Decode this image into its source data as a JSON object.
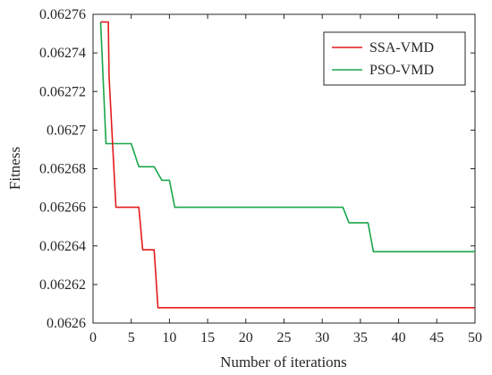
{
  "chart_data": {
    "type": "line",
    "title": "",
    "xlabel": "Number of iterations",
    "ylabel": "Fitness",
    "xlim": [
      0,
      50
    ],
    "ylim": [
      0.0626,
      0.06276
    ],
    "x_ticks": [
      0,
      5,
      10,
      15,
      20,
      25,
      30,
      35,
      40,
      45,
      50
    ],
    "y_ticks": [
      0.0626,
      0.06262,
      0.06264,
      0.06266,
      0.06268,
      0.0627,
      0.06272,
      0.06274,
      0.06276
    ],
    "x_tick_labels": [
      "0",
      "5",
      "10",
      "15",
      "20",
      "25",
      "30",
      "35",
      "40",
      "45",
      "50"
    ],
    "y_tick_labels": [
      "0.0626",
      "0.06262",
      "0.06264",
      "0.06266",
      "0.06268",
      "0.0627",
      "0.06272",
      "0.06274",
      "0.06276"
    ],
    "grid": false,
    "legend_position": "top-right",
    "series": [
      {
        "name": "SSA-VMD",
        "color": "#e41a1c",
        "x": [
          1,
          2,
          2.1,
          3,
          4,
          5,
          6,
          6.5,
          7,
          8,
          8.5,
          9,
          10,
          20,
          30,
          40,
          50
        ],
        "y": [
          0.062756,
          0.062756,
          0.062728,
          0.06266,
          0.06266,
          0.06266,
          0.06266,
          0.062638,
          0.062638,
          0.062638,
          0.062608,
          0.062608,
          0.062608,
          0.062608,
          0.062608,
          0.062608,
          0.062608
        ]
      },
      {
        "name": "PSO-VMD",
        "color": "#1aa64a",
        "x": [
          1,
          1.7,
          2,
          3,
          4,
          5,
          6,
          7,
          8,
          9,
          10,
          10.7,
          15,
          20,
          25,
          30,
          32.7,
          33.5,
          34,
          35,
          36,
          36.7,
          37,
          40,
          45,
          50
        ],
        "y": [
          0.062756,
          0.062693,
          0.062693,
          0.062693,
          0.062693,
          0.062693,
          0.062681,
          0.062681,
          0.062681,
          0.062674,
          0.062674,
          0.06266,
          0.06266,
          0.06266,
          0.06266,
          0.06266,
          0.06266,
          0.062652,
          0.062652,
          0.062652,
          0.062652,
          0.062637,
          0.062637,
          0.062637,
          0.062637,
          0.062637
        ]
      }
    ]
  }
}
